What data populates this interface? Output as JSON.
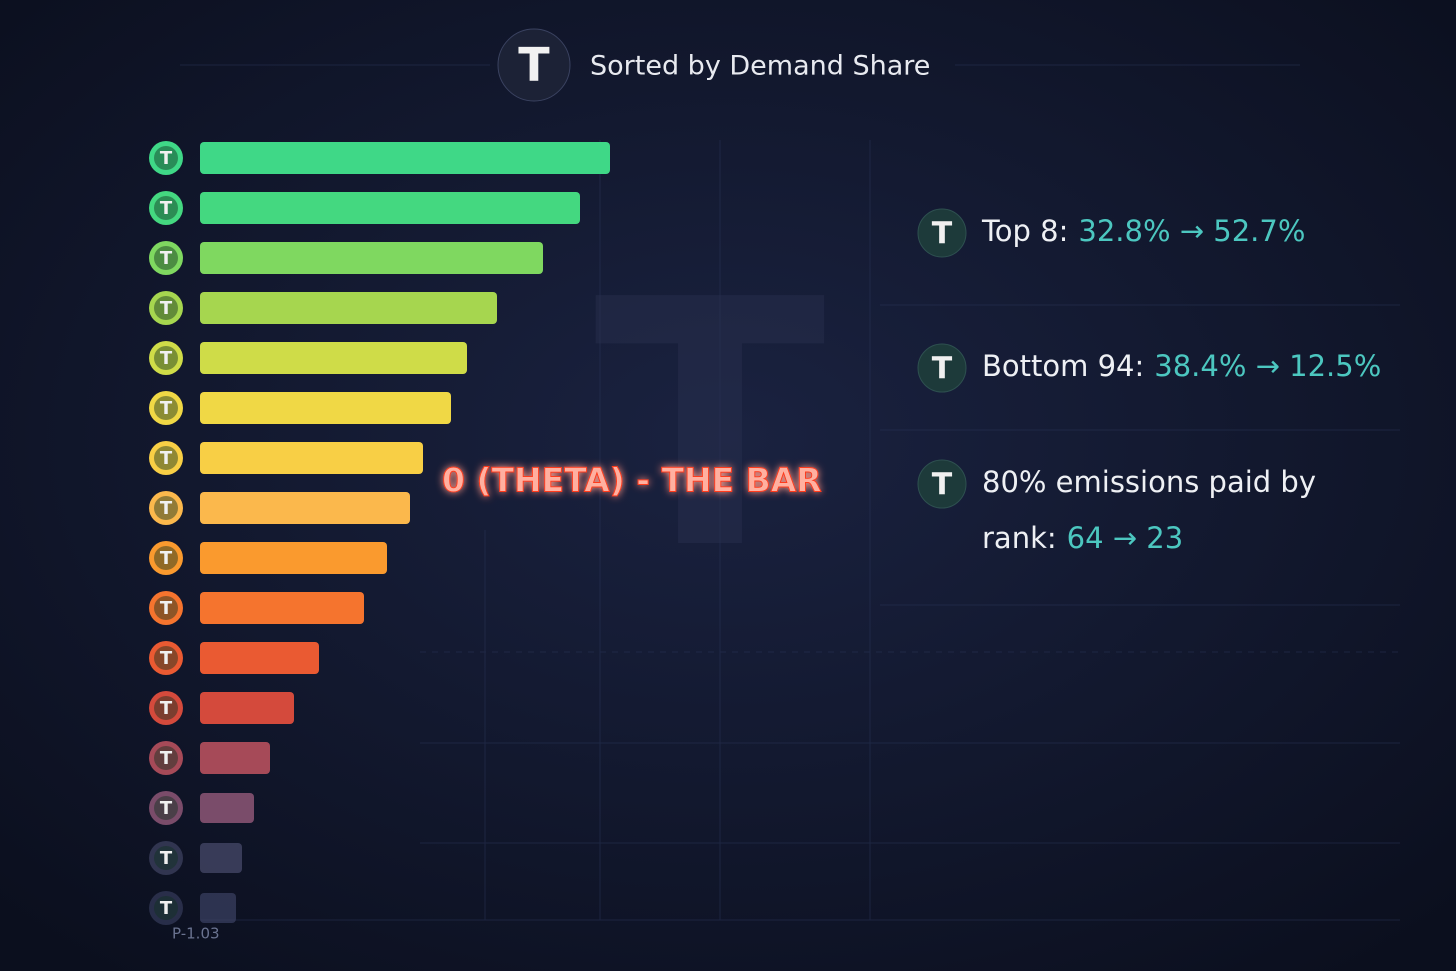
{
  "chart_data": {
    "type": "bar",
    "orientation": "horizontal",
    "title": "Sorted by Demand Share",
    "categories": [
      null,
      null,
      null,
      null,
      null,
      null,
      null,
      null,
      null,
      null,
      null,
      null,
      null,
      null,
      null,
      null
    ],
    "values": [
      41,
      38,
      34.3,
      29.7,
      26.7,
      25.1,
      22.3,
      21,
      18.7,
      16.4,
      11.9,
      9.4,
      7,
      5.4,
      4.2,
      3.6
    ],
    "colors": [
      "#3fd887",
      "#44d880",
      "#7fd860",
      "#a6d64f",
      "#cfdc48",
      "#f0d845",
      "#f8cf45",
      "#fbb84c",
      "#fa9a2e",
      "#f5742e",
      "#ea5a32",
      "#d44a3c",
      "#a64a58",
      "#7a4c6a",
      "#4a4d6e",
      "#3c4264"
    ],
    "xlim": [
      0,
      67
    ],
    "annotation": "0 (THETA) - THE BAR",
    "stats": [
      {
        "label": "Top 8:",
        "value": "32.8% → 52.7%"
      },
      {
        "label": "Bottom 94:",
        "value": "38.4% → 12.5%"
      },
      {
        "label": "80% emissions paid by",
        "label2": "rank:",
        "value": "64 → 23"
      }
    ],
    "footer": "P-1.03"
  }
}
